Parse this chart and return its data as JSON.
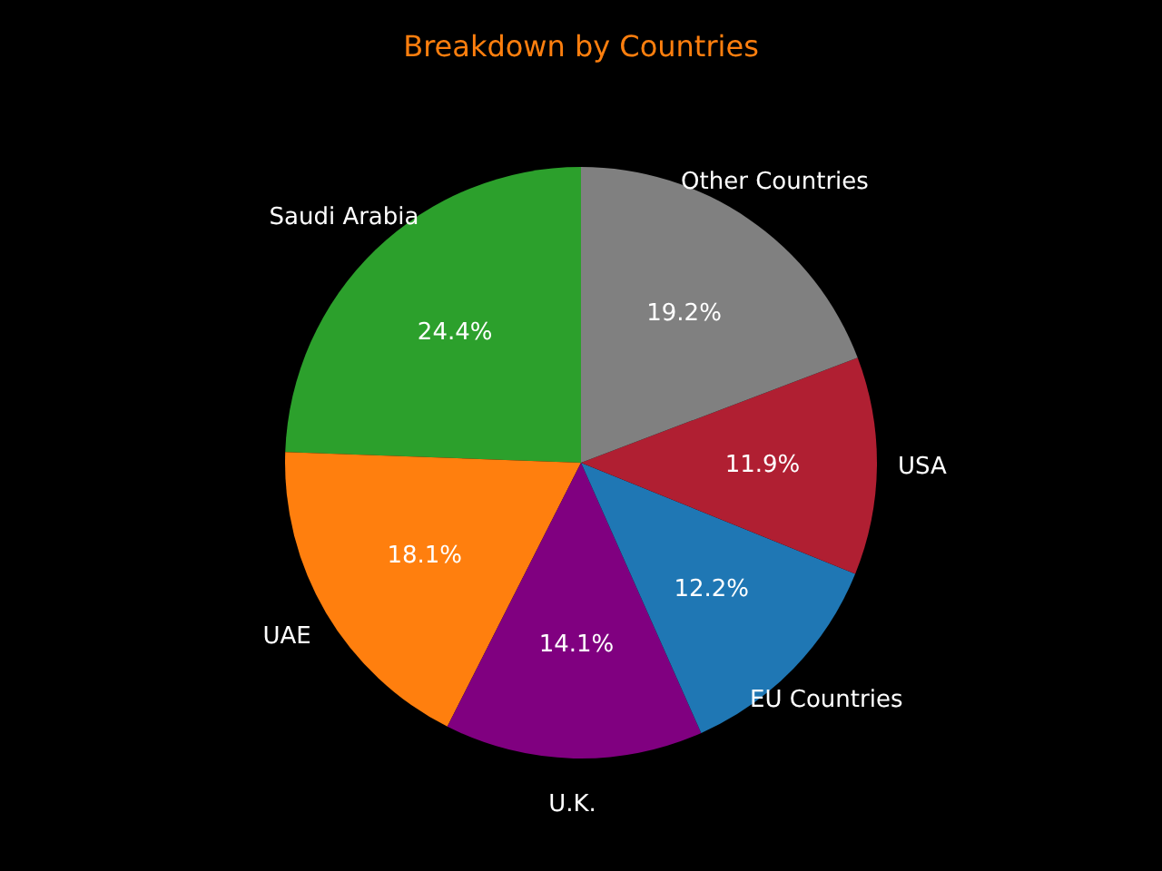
{
  "chart_data": {
    "type": "pie",
    "title": "Breakdown by Countries",
    "categories": [
      "Saudi Arabia",
      "UAE",
      "U.K.",
      "EU Countries",
      "USA",
      "Other Countries"
    ],
    "values": [
      24.4,
      18.1,
      14.1,
      12.2,
      11.9,
      19.2
    ],
    "value_labels": [
      "24.4%",
      "18.1%",
      "14.1%",
      "12.2%",
      "11.9%",
      "19.2%"
    ],
    "colors": [
      "#2ca02c",
      "#ff7f0e",
      "#800080",
      "#1f77b4",
      "#b01f32",
      "#808080"
    ],
    "legend": false
  }
}
